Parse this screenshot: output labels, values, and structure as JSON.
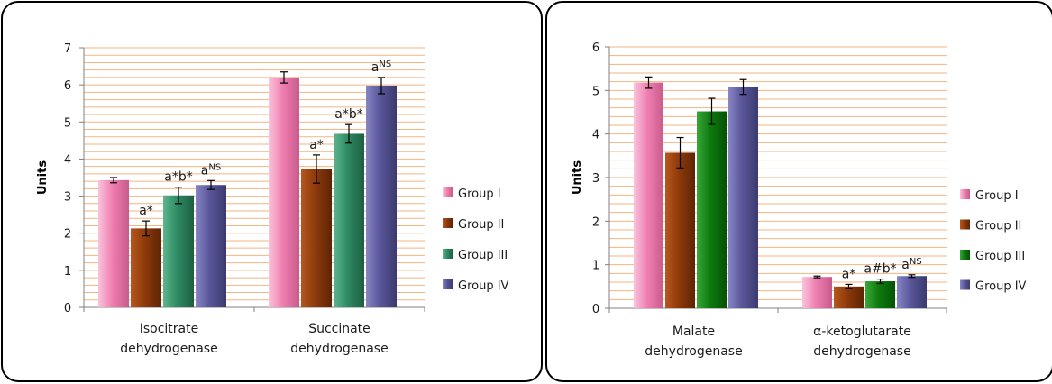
{
  "chart_data": [
    {
      "type": "bar",
      "ylabel": "Units",
      "ylim": [
        0,
        7
      ],
      "yticks": [
        0,
        1,
        2,
        3,
        4,
        5,
        6,
        7
      ],
      "grid": true,
      "legend_position": "right",
      "categories": [
        [
          "Isocitrate",
          "dehydrogenase"
        ],
        [
          "Succinate",
          "dehydrogenase"
        ]
      ],
      "series": [
        {
          "name": "Group I",
          "color": "#f07fb0",
          "values": [
            3.43,
            6.2
          ],
          "errors": [
            0.07,
            0.15
          ]
        },
        {
          "name": "Group II",
          "color": "#8e3a0a",
          "values": [
            2.13,
            3.73
          ],
          "errors": [
            0.2,
            0.38
          ]
        },
        {
          "name": "Group III",
          "color": "#2e8b63",
          "values": [
            3.02,
            4.68
          ],
          "errors": [
            0.22,
            0.25
          ]
        },
        {
          "name": "Group IV",
          "color": "#59579a",
          "values": [
            3.3,
            5.98
          ],
          "errors": [
            0.12,
            0.22
          ]
        }
      ],
      "annotations": [
        {
          "category": 0,
          "series": 1,
          "text": "a*",
          "sup": ""
        },
        {
          "category": 0,
          "series": 2,
          "text": "a*b*",
          "sup": ""
        },
        {
          "category": 0,
          "series": 3,
          "text": "a",
          "sup": "NS"
        },
        {
          "category": 1,
          "series": 1,
          "text": "a*",
          "sup": ""
        },
        {
          "category": 1,
          "series": 2,
          "text": "a*b*",
          "sup": ""
        },
        {
          "category": 1,
          "series": 3,
          "text": "a",
          "sup": "NS"
        }
      ]
    },
    {
      "type": "bar",
      "ylabel": "Units",
      "ylim": [
        0,
        6
      ],
      "yticks": [
        0,
        1,
        2,
        3,
        4,
        5,
        6
      ],
      "grid": true,
      "legend_position": "right",
      "categories": [
        [
          "Malate",
          "dehydrogenase"
        ],
        [
          "α-ketoglutarate",
          "dehydrogenase"
        ]
      ],
      "series": [
        {
          "name": "Group I",
          "color": "#f07fb0",
          "values": [
            5.18,
            0.72
          ],
          "errors": [
            0.13,
            0.02
          ]
        },
        {
          "name": "Group II",
          "color": "#8e3a0a",
          "values": [
            3.57,
            0.5
          ],
          "errors": [
            0.35,
            0.05
          ]
        },
        {
          "name": "Group III",
          "color": "#0d7a0d",
          "values": [
            4.52,
            0.62
          ],
          "errors": [
            0.3,
            0.05
          ]
        },
        {
          "name": "Group IV",
          "color": "#59579a",
          "values": [
            5.08,
            0.74
          ],
          "errors": [
            0.17,
            0.03
          ]
        }
      ],
      "annotations": [
        {
          "category": 1,
          "series": 1,
          "text": "a*",
          "sup": ""
        },
        {
          "category": 1,
          "series": 2,
          "text": "a#b*",
          "sup": ""
        },
        {
          "category": 1,
          "series": 3,
          "text": "a",
          "sup": "NS"
        }
      ]
    }
  ]
}
